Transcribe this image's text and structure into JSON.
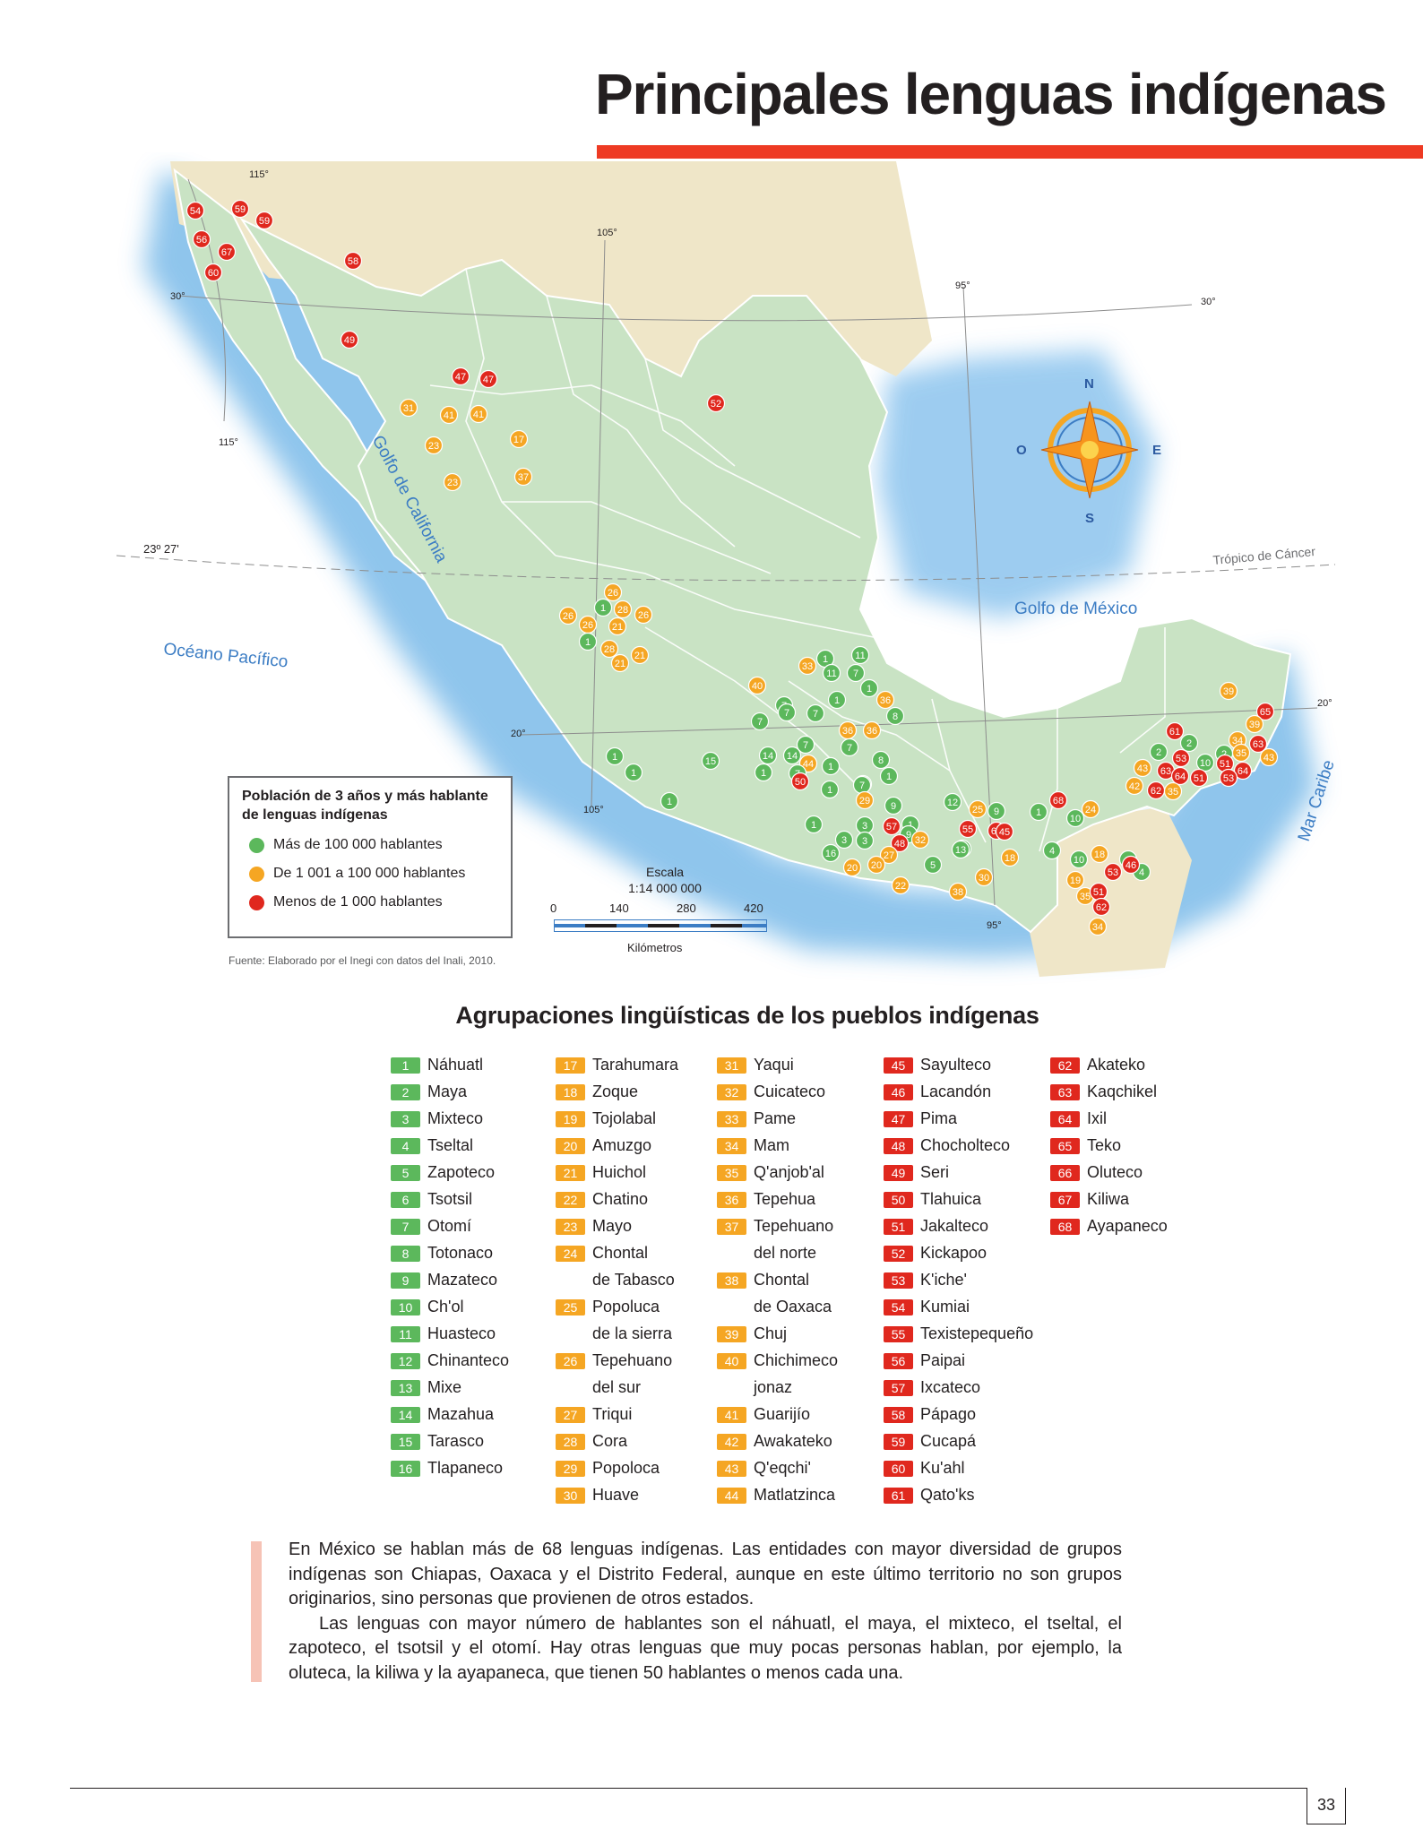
{
  "title": "Principales lenguas indígenas",
  "map": {
    "lines": {
      "lon_115_top": "115°",
      "lon_115_low": "115°",
      "lon_105_top": "105°",
      "lon_105_low": "105°",
      "lon_95_top": "95°",
      "lon_95_low": "95°",
      "lat_30_left": "30°",
      "lat_30_right": "30°",
      "lat_20_left": "20°",
      "lat_20_right": "20°",
      "lat_tropic_left": "23º 27'",
      "tropic": "Trópico de Cáncer"
    },
    "water_labels": {
      "gulf_california": "Golfo de California",
      "gulf_mexico": "Golfo de México",
      "pacific": "Océano Pacífico",
      "caribbean": "Mar Caribe"
    },
    "compass": {
      "n": "N",
      "s": "S",
      "e": "E",
      "o": "O"
    },
    "colors": {
      "green": "#5cb85c",
      "orange": "#f5a623",
      "red": "#e0281e"
    },
    "markers": [
      {
        "n": "54",
        "c": "red"
      },
      {
        "n": "59",
        "c": "red"
      },
      {
        "n": "59",
        "c": "red"
      },
      {
        "n": "56",
        "c": "red"
      },
      {
        "n": "67",
        "c": "red"
      },
      {
        "n": "60",
        "c": "red"
      },
      {
        "n": "58",
        "c": "red"
      },
      {
        "n": "49",
        "c": "red"
      },
      {
        "n": "47",
        "c": "red"
      },
      {
        "n": "47",
        "c": "red"
      },
      {
        "n": "31",
        "c": "orange"
      },
      {
        "n": "41",
        "c": "orange"
      },
      {
        "n": "41",
        "c": "orange"
      },
      {
        "n": "23",
        "c": "orange"
      },
      {
        "n": "17",
        "c": "orange"
      },
      {
        "n": "23",
        "c": "orange"
      },
      {
        "n": "37",
        "c": "orange"
      },
      {
        "n": "52",
        "c": "red"
      },
      {
        "n": "26",
        "c": "orange"
      },
      {
        "n": "1",
        "c": "green"
      },
      {
        "n": "28",
        "c": "orange"
      },
      {
        "n": "26",
        "c": "orange"
      },
      {
        "n": "26",
        "c": "orange"
      },
      {
        "n": "26",
        "c": "orange"
      },
      {
        "n": "21",
        "c": "orange"
      },
      {
        "n": "1",
        "c": "green"
      },
      {
        "n": "28",
        "c": "orange"
      },
      {
        "n": "21",
        "c": "orange"
      },
      {
        "n": "21",
        "c": "orange"
      },
      {
        "n": "1",
        "c": "green"
      },
      {
        "n": "1",
        "c": "green"
      },
      {
        "n": "15",
        "c": "green"
      },
      {
        "n": "1",
        "c": "green"
      },
      {
        "n": "40",
        "c": "orange"
      },
      {
        "n": "33",
        "c": "orange"
      },
      {
        "n": "1",
        "c": "green"
      },
      {
        "n": "11",
        "c": "green"
      },
      {
        "n": "11",
        "c": "green"
      },
      {
        "n": "7",
        "c": "green"
      },
      {
        "n": "1",
        "c": "green"
      },
      {
        "n": "1",
        "c": "green"
      },
      {
        "n": "36",
        "c": "orange"
      },
      {
        "n": "8",
        "c": "green"
      },
      {
        "n": "7",
        "c": "green"
      },
      {
        "n": "7",
        "c": "green"
      },
      {
        "n": "7",
        "c": "green"
      },
      {
        "n": "7",
        "c": "green"
      },
      {
        "n": "36",
        "c": "orange"
      },
      {
        "n": "36",
        "c": "orange"
      },
      {
        "n": "7",
        "c": "green"
      },
      {
        "n": "8",
        "c": "green"
      },
      {
        "n": "14",
        "c": "green"
      },
      {
        "n": "14",
        "c": "green"
      },
      {
        "n": "7",
        "c": "green"
      },
      {
        "n": "44",
        "c": "orange"
      },
      {
        "n": "1",
        "c": "green"
      },
      {
        "n": "1",
        "c": "green"
      },
      {
        "n": "7",
        "c": "green"
      },
      {
        "n": "1",
        "c": "green"
      },
      {
        "n": "50",
        "c": "red"
      },
      {
        "n": "1",
        "c": "green"
      },
      {
        "n": "1",
        "c": "green"
      },
      {
        "n": "7",
        "c": "green"
      },
      {
        "n": "29",
        "c": "orange"
      },
      {
        "n": "9",
        "c": "green"
      },
      {
        "n": "3",
        "c": "green"
      },
      {
        "n": "1",
        "c": "green"
      },
      {
        "n": "1",
        "c": "green"
      },
      {
        "n": "57",
        "c": "red"
      },
      {
        "n": "9",
        "c": "green"
      },
      {
        "n": "12",
        "c": "green"
      },
      {
        "n": "9",
        "c": "green"
      },
      {
        "n": "25",
        "c": "orange"
      },
      {
        "n": "66",
        "c": "red"
      },
      {
        "n": "45",
        "c": "red"
      },
      {
        "n": "55",
        "c": "red"
      },
      {
        "n": "3",
        "c": "green"
      },
      {
        "n": "3",
        "c": "green"
      },
      {
        "n": "48",
        "c": "red"
      },
      {
        "n": "32",
        "c": "orange"
      },
      {
        "n": "12",
        "c": "green"
      },
      {
        "n": "16",
        "c": "green"
      },
      {
        "n": "27",
        "c": "orange"
      },
      {
        "n": "13",
        "c": "green"
      },
      {
        "n": "20",
        "c": "orange"
      },
      {
        "n": "20",
        "c": "orange"
      },
      {
        "n": "5",
        "c": "green"
      },
      {
        "n": "22",
        "c": "orange"
      },
      {
        "n": "30",
        "c": "orange"
      },
      {
        "n": "38",
        "c": "orange"
      },
      {
        "n": "18",
        "c": "orange"
      },
      {
        "n": "1",
        "c": "green"
      },
      {
        "n": "68",
        "c": "red"
      },
      {
        "n": "24",
        "c": "orange"
      },
      {
        "n": "10",
        "c": "green"
      },
      {
        "n": "4",
        "c": "green"
      },
      {
        "n": "10",
        "c": "green"
      },
      {
        "n": "18",
        "c": "orange"
      },
      {
        "n": "6",
        "c": "green"
      },
      {
        "n": "4",
        "c": "green"
      },
      {
        "n": "53",
        "c": "red"
      },
      {
        "n": "46",
        "c": "red"
      },
      {
        "n": "19",
        "c": "orange"
      },
      {
        "n": "35",
        "c": "orange"
      },
      {
        "n": "51",
        "c": "red"
      },
      {
        "n": "62",
        "c": "red"
      },
      {
        "n": "34",
        "c": "orange"
      },
      {
        "n": "39",
        "c": "orange"
      },
      {
        "n": "65",
        "c": "red"
      },
      {
        "n": "61",
        "c": "red"
      },
      {
        "n": "2",
        "c": "green"
      },
      {
        "n": "2",
        "c": "green"
      },
      {
        "n": "53",
        "c": "red"
      },
      {
        "n": "10",
        "c": "green"
      },
      {
        "n": "43",
        "c": "orange"
      },
      {
        "n": "63",
        "c": "red"
      },
      {
        "n": "64",
        "c": "red"
      },
      {
        "n": "42",
        "c": "orange"
      },
      {
        "n": "62",
        "c": "red"
      },
      {
        "n": "35",
        "c": "orange"
      },
      {
        "n": "51",
        "c": "red"
      },
      {
        "n": "39",
        "c": "orange"
      },
      {
        "n": "34",
        "c": "orange"
      },
      {
        "n": "2",
        "c": "green"
      },
      {
        "n": "63",
        "c": "red"
      },
      {
        "n": "35",
        "c": "orange"
      },
      {
        "n": "43",
        "c": "orange"
      },
      {
        "n": "51",
        "c": "red"
      },
      {
        "n": "64",
        "c": "red"
      },
      {
        "n": "53",
        "c": "red"
      },
      {
        "n": "39",
        "c": "orange"
      },
      {
        "n": "34",
        "c": "orange"
      },
      {
        "n": "62",
        "c": "red"
      }
    ]
  },
  "legend": {
    "title": "Población de 3 años y más hablante de lenguas indígenas",
    "items": [
      {
        "label": "Más de 100 000 hablantes",
        "color": "#5cb85c"
      },
      {
        "label": "De 1 001 a 100 000 hablantes",
        "color": "#f5a623"
      },
      {
        "label": "Menos de 1 000 hablantes",
        "color": "#e0281e"
      }
    ]
  },
  "scale": {
    "label": "Escala",
    "ratio": "1:14 000 000",
    "ticks": [
      "0",
      "140",
      "280",
      "420"
    ],
    "units": "Kilómetros"
  },
  "source": "Fuente: Elaborado por el Inegi con datos del Inali, 2010.",
  "list_title": "Agrupaciones lingüísticas de los pueblos indígenas",
  "columns": [
    [
      {
        "n": "1",
        "c": "g",
        "name": "Náhuatl"
      },
      {
        "n": "2",
        "c": "g",
        "name": "Maya"
      },
      {
        "n": "3",
        "c": "g",
        "name": "Mixteco"
      },
      {
        "n": "4",
        "c": "g",
        "name": "Tseltal"
      },
      {
        "n": "5",
        "c": "g",
        "name": "Zapoteco"
      },
      {
        "n": "6",
        "c": "g",
        "name": "Tsotsil"
      },
      {
        "n": "7",
        "c": "g",
        "name": "Otomí"
      },
      {
        "n": "8",
        "c": "g",
        "name": "Totonaco"
      },
      {
        "n": "9",
        "c": "g",
        "name": "Mazateco"
      },
      {
        "n": "10",
        "c": "g",
        "name": "Ch'ol"
      },
      {
        "n": "11",
        "c": "g",
        "name": "Huasteco"
      },
      {
        "n": "12",
        "c": "g",
        "name": "Chinanteco"
      },
      {
        "n": "13",
        "c": "g",
        "name": "Mixe"
      },
      {
        "n": "14",
        "c": "g",
        "name": "Mazahua"
      },
      {
        "n": "15",
        "c": "g",
        "name": "Tarasco"
      },
      {
        "n": "16",
        "c": "g",
        "name": "Tlapaneco"
      }
    ],
    [
      {
        "n": "17",
        "c": "o",
        "name": "Tarahumara"
      },
      {
        "n": "18",
        "c": "o",
        "name": "Zoque"
      },
      {
        "n": "19",
        "c": "o",
        "name": "Tojolabal"
      },
      {
        "n": "20",
        "c": "o",
        "name": "Amuzgo"
      },
      {
        "n": "21",
        "c": "o",
        "name": "Huichol"
      },
      {
        "n": "22",
        "c": "o",
        "name": "Chatino"
      },
      {
        "n": "23",
        "c": "o",
        "name": "Mayo"
      },
      {
        "n": "24",
        "c": "o",
        "name": "Chontal",
        "cont": "de Tabasco"
      },
      {
        "n": "25",
        "c": "o",
        "name": "Popoluca",
        "cont": "de la sierra"
      },
      {
        "n": "26",
        "c": "o",
        "name": "Tepehuano",
        "cont": "del sur"
      },
      {
        "n": "27",
        "c": "o",
        "name": "Triqui"
      },
      {
        "n": "28",
        "c": "o",
        "name": "Cora"
      },
      {
        "n": "29",
        "c": "o",
        "name": "Popoloca"
      },
      {
        "n": "30",
        "c": "o",
        "name": "Huave"
      }
    ],
    [
      {
        "n": "31",
        "c": "o",
        "name": "Yaqui"
      },
      {
        "n": "32",
        "c": "o",
        "name": "Cuicateco"
      },
      {
        "n": "33",
        "c": "o",
        "name": "Pame"
      },
      {
        "n": "34",
        "c": "o",
        "name": "Mam"
      },
      {
        "n": "35",
        "c": "o",
        "name": "Q'anjob'al"
      },
      {
        "n": "36",
        "c": "o",
        "name": "Tepehua"
      },
      {
        "n": "37",
        "c": "o",
        "name": "Tepehuano",
        "cont": "del norte"
      },
      {
        "n": "38",
        "c": "o",
        "name": "Chontal",
        "cont": "de Oaxaca"
      },
      {
        "n": "39",
        "c": "o",
        "name": "Chuj"
      },
      {
        "n": "40",
        "c": "o",
        "name": "Chichimeco",
        "cont": "jonaz"
      },
      {
        "n": "41",
        "c": "o",
        "name": "Guarijío"
      },
      {
        "n": "42",
        "c": "o",
        "name": "Awakateko"
      },
      {
        "n": "43",
        "c": "o",
        "name": "Q'eqchi'"
      },
      {
        "n": "44",
        "c": "o",
        "name": "Matlatzinca"
      }
    ],
    [
      {
        "n": "45",
        "c": "r",
        "name": "Sayulteco"
      },
      {
        "n": "46",
        "c": "r",
        "name": "Lacandón"
      },
      {
        "n": "47",
        "c": "r",
        "name": "Pima"
      },
      {
        "n": "48",
        "c": "r",
        "name": "Chocholteco"
      },
      {
        "n": "49",
        "c": "r",
        "name": "Seri"
      },
      {
        "n": "50",
        "c": "r",
        "name": "Tlahuica"
      },
      {
        "n": "51",
        "c": "r",
        "name": "Jakalteco"
      },
      {
        "n": "52",
        "c": "r",
        "name": "Kickapoo"
      },
      {
        "n": "53",
        "c": "r",
        "name": "K'iche'"
      },
      {
        "n": "54",
        "c": "r",
        "name": "Kumiai"
      },
      {
        "n": "55",
        "c": "r",
        "name": "Texistepequeño"
      },
      {
        "n": "56",
        "c": "r",
        "name": "Paipai"
      },
      {
        "n": "57",
        "c": "r",
        "name": "Ixcateco"
      },
      {
        "n": "58",
        "c": "r",
        "name": "Pápago"
      },
      {
        "n": "59",
        "c": "r",
        "name": "Cucapá"
      },
      {
        "n": "60",
        "c": "r",
        "name": "Ku'ahl"
      },
      {
        "n": "61",
        "c": "r",
        "name": "Qato'ks"
      }
    ],
    [
      {
        "n": "62",
        "c": "r",
        "name": "Akateko"
      },
      {
        "n": "63",
        "c": "r",
        "name": "Kaqchikel"
      },
      {
        "n": "64",
        "c": "r",
        "name": "Ixil"
      },
      {
        "n": "65",
        "c": "r",
        "name": "Teko"
      },
      {
        "n": "66",
        "c": "r",
        "name": "Oluteco"
      },
      {
        "n": "67",
        "c": "r",
        "name": "Kiliwa"
      },
      {
        "n": "68",
        "c": "r",
        "name": "Ayapaneco"
      }
    ]
  ],
  "paragraph1": "En México se hablan más de 68 lenguas indígenas. Las entidades con mayor diversidad de grupos indígenas son Chiapas, Oaxaca y el Distrito Federal, aunque en este último territorio no son grupos originarios, sino personas que provienen de otros estados.",
  "paragraph2": "Las lenguas con mayor número de hablantes son el náhuatl, el maya, el mixteco, el tseltal, el zapoteco, el tsotsil y el otomí. Hay otras lenguas que muy pocas personas hablan, por ejemplo, la oluteca, la kiliwa y la ayapaneca, que tienen 50 hablantes o menos cada una.",
  "page_number": "33"
}
